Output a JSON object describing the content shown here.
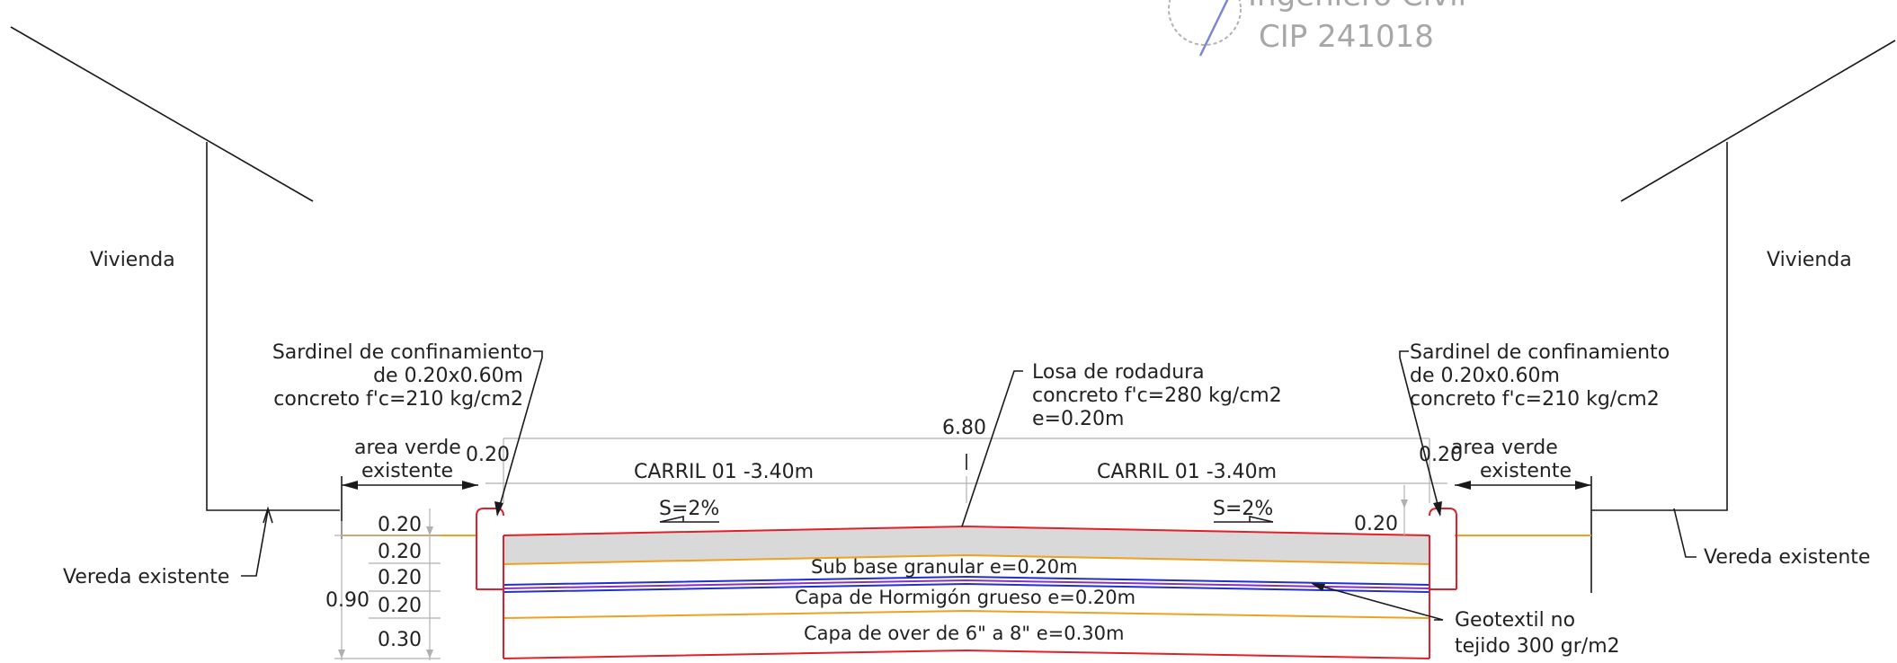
{
  "stamp": {
    "line1": "Ingeniero Civil",
    "line2": "CIP 241018"
  },
  "labels": {
    "vivienda_left": "Vivienda",
    "vivienda_right": "Vivienda",
    "vereda_left": "Vereda existente",
    "vereda_right": "Vereda existente",
    "sardinel_left": [
      "Sardinel de confinamiento",
      "de 0.20x0.60m",
      "concreto f'c=210 kg/cm2"
    ],
    "sardinel_right": [
      "Sardinel de confinamiento",
      "de 0.20x0.60m",
      "concreto f'c=210 kg/cm2"
    ],
    "losa": [
      "Losa de rodadura",
      "concreto f'c=280 kg/cm2",
      "e=0.20m"
    ],
    "area_verde_left": [
      "area verde",
      "existente"
    ],
    "area_verde_right": [
      "area verde",
      "existente"
    ],
    "total_width": "6.80",
    "carril_left": "CARRIL 01  -3.40m",
    "carril_right": "CARRIL 01  -3.40m",
    "curb_left": "0.20",
    "curb_right": "0.20",
    "slope_left": "S=2%",
    "slope_right": "S=2%",
    "right_depth": "0.20",
    "sub_base": "Sub base granular e=0.20m",
    "hormigon": "Capa de Hormigón grueso e=0.20m",
    "over": "Capa de over de 6\" a 8\" e=0.30m",
    "geotextil": [
      "Geotextil no",
      "tejido 300 gr/m2"
    ],
    "depths": [
      "0.20",
      "0.20",
      "0.20",
      "0.20",
      "0.30"
    ],
    "total_depth": "0.90"
  },
  "colors": {
    "pavement": "#d9d9d9",
    "curb": "#e0202a",
    "layer_base": "#f0a020",
    "geotextile": "#2030d0"
  }
}
